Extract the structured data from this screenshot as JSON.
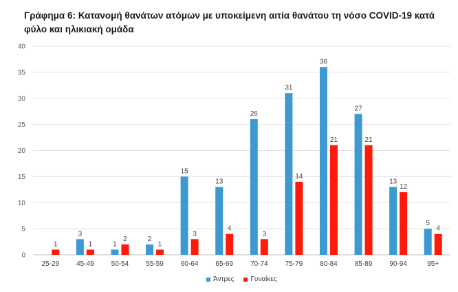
{
  "title": "Γράφημα 6: Κατανομή θανάτων ατόμων με υποκείμενη αιτία θανάτου τη νόσο COVID-19 κατά φύλο και ηλικιακή ομάδα",
  "colors": {
    "men": "#3d9ad1",
    "women": "#ff1a0a"
  },
  "chart_data": {
    "type": "bar",
    "title": "Γράφημα 6: Κατανομή θανάτων ατόμων με υποκείμενη αιτία θανάτου τη νόσο COVID-19 κατά φύλο και ηλικιακή ομάδα",
    "xlabel": "",
    "ylabel": "",
    "ylim": [
      0,
      40
    ],
    "yticks": [
      0,
      5,
      10,
      15,
      20,
      25,
      30,
      35,
      40
    ],
    "grid": true,
    "legend_position": "bottom",
    "categories": [
      "25-29",
      "45-49",
      "50-54",
      "55-59",
      "60-64",
      "65-69",
      "70-74",
      "75-79",
      "80-84",
      "85-89",
      "90-94",
      "95+"
    ],
    "series": [
      {
        "name": "Άντρες",
        "values": [
          null,
          3,
          1,
          2,
          15,
          13,
          26,
          31,
          36,
          27,
          13,
          5
        ]
      },
      {
        "name": "Γυναίκες",
        "values": [
          1,
          1,
          2,
          1,
          3,
          4,
          3,
          14,
          21,
          21,
          12,
          4
        ]
      }
    ]
  }
}
